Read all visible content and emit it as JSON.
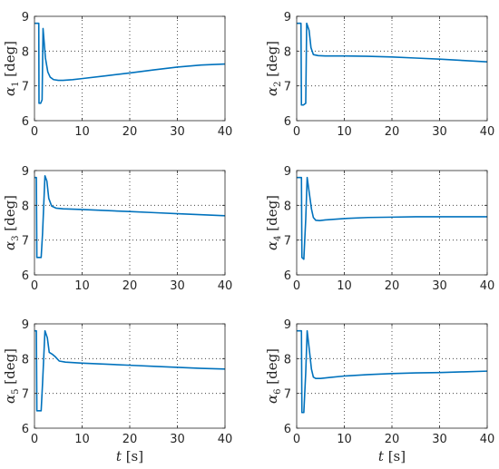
{
  "figure": {
    "xlabel": {
      "symbol": "t",
      "unit": "[s]"
    },
    "line_color": "#0072BD"
  },
  "chart_data": [
    {
      "type": "line",
      "ylabel": {
        "symbol": "α",
        "sub": "1",
        "unit": "[deg]"
      },
      "xlim": [
        0,
        40
      ],
      "ylim": [
        6,
        9
      ],
      "xticks": [
        0,
        10,
        20,
        30,
        40
      ],
      "yticks": [
        6,
        7,
        8,
        9
      ],
      "xticklabels": [
        "0",
        "10",
        "20",
        "30",
        "40"
      ],
      "yticklabels": [
        "6",
        "7",
        "8",
        "9"
      ],
      "grid": true,
      "x": [
        0,
        0.9,
        0.95,
        1.3,
        1.6,
        1.8,
        2.3,
        2.8,
        3.3,
        4,
        5,
        6,
        8,
        10,
        15,
        20,
        25,
        30,
        35,
        40
      ],
      "y": [
        8.8,
        8.8,
        6.5,
        6.5,
        6.6,
        8.65,
        7.8,
        7.4,
        7.25,
        7.18,
        7.16,
        7.16,
        7.18,
        7.21,
        7.29,
        7.37,
        7.46,
        7.54,
        7.6,
        7.63
      ]
    },
    {
      "type": "line",
      "ylabel": {
        "symbol": "α",
        "sub": "2",
        "unit": "[deg]"
      },
      "xlim": [
        0,
        40
      ],
      "ylim": [
        6,
        9
      ],
      "xticks": [
        0,
        10,
        20,
        30,
        40
      ],
      "yticks": [
        6,
        7,
        8,
        9
      ],
      "xticklabels": [
        "0",
        "10",
        "20",
        "30",
        "40"
      ],
      "yticklabels": [
        "6",
        "7",
        "8",
        "9"
      ],
      "grid": true,
      "x": [
        0,
        0.9,
        1.0,
        1.4,
        1.9,
        2.1,
        2.6,
        3.0,
        3.5,
        4.5,
        6,
        10,
        15,
        20,
        25,
        30,
        35,
        40
      ],
      "y": [
        8.8,
        8.8,
        6.45,
        6.45,
        6.5,
        8.8,
        8.6,
        8.1,
        7.9,
        7.87,
        7.86,
        7.86,
        7.85,
        7.83,
        7.8,
        7.77,
        7.73,
        7.69
      ]
    },
    {
      "type": "line",
      "ylabel": {
        "symbol": "α",
        "sub": "3",
        "unit": "[deg]"
      },
      "xlim": [
        0,
        40
      ],
      "ylim": [
        6,
        9
      ],
      "xticks": [
        0,
        10,
        20,
        30,
        40
      ],
      "yticks": [
        6,
        7,
        8,
        9
      ],
      "xticklabels": [
        "0",
        "10",
        "20",
        "30",
        "40"
      ],
      "yticklabels": [
        "6",
        "7",
        "8",
        "9"
      ],
      "grid": true,
      "x": [
        0,
        0.4,
        0.5,
        1.4,
        1.7,
        2.2,
        2.6,
        3.0,
        3.6,
        4.5,
        6,
        10,
        15,
        20,
        25,
        30,
        35,
        40
      ],
      "y": [
        8.8,
        8.8,
        6.5,
        6.5,
        7.2,
        8.85,
        8.7,
        8.2,
        7.98,
        7.92,
        7.9,
        7.88,
        7.85,
        7.82,
        7.79,
        7.76,
        7.73,
        7.7
      ]
    },
    {
      "type": "line",
      "ylabel": {
        "symbol": "α",
        "sub": "4",
        "unit": "[deg]"
      },
      "xlim": [
        0,
        40
      ],
      "ylim": [
        6,
        9
      ],
      "xticks": [
        0,
        10,
        20,
        30,
        40
      ],
      "yticks": [
        6,
        7,
        8,
        9
      ],
      "xticklabels": [
        "0",
        "10",
        "20",
        "30",
        "40"
      ],
      "yticklabels": [
        "6",
        "7",
        "8",
        "9"
      ],
      "grid": true,
      "x": [
        0,
        1.0,
        1.1,
        1.5,
        1.9,
        2.2,
        2.7,
        3.1,
        3.5,
        4.0,
        4.8,
        6,
        10,
        15,
        20,
        25,
        30,
        35,
        40
      ],
      "y": [
        8.8,
        8.8,
        6.5,
        6.45,
        7.6,
        8.8,
        8.3,
        7.9,
        7.65,
        7.57,
        7.56,
        7.58,
        7.62,
        7.65,
        7.66,
        7.67,
        7.67,
        7.67,
        7.67
      ]
    },
    {
      "type": "line",
      "ylabel": {
        "symbol": "α",
        "sub": "5",
        "unit": "[deg]"
      },
      "xlim": [
        0,
        40
      ],
      "ylim": [
        6,
        9
      ],
      "xticks": [
        0,
        10,
        20,
        30,
        40
      ],
      "yticks": [
        6,
        7,
        8,
        9
      ],
      "xticklabels": [
        "0",
        "10",
        "20",
        "30",
        "40"
      ],
      "yticklabels": [
        "6",
        "7",
        "8",
        "9"
      ],
      "grid": true,
      "x": [
        0,
        0.4,
        0.5,
        1.4,
        1.7,
        2.2,
        2.7,
        3.1,
        3.8,
        4.4,
        5.2,
        6.5,
        10,
        15,
        20,
        25,
        30,
        35,
        40
      ],
      "y": [
        8.8,
        8.8,
        6.5,
        6.5,
        7.3,
        8.8,
        8.6,
        8.18,
        8.12,
        8.05,
        7.93,
        7.9,
        7.87,
        7.84,
        7.81,
        7.78,
        7.75,
        7.72,
        7.7
      ]
    },
    {
      "type": "line",
      "ylabel": {
        "symbol": "α",
        "sub": "6",
        "unit": "[deg]"
      },
      "xlim": [
        0,
        40
      ],
      "ylim": [
        6,
        9
      ],
      "xticks": [
        0,
        10,
        20,
        30,
        40
      ],
      "yticks": [
        6,
        7,
        8,
        9
      ],
      "xticklabels": [
        "0",
        "10",
        "20",
        "30",
        "40"
      ],
      "yticklabels": [
        "6",
        "7",
        "8",
        "9"
      ],
      "grid": true,
      "x": [
        0,
        1.0,
        1.1,
        1.5,
        1.9,
        2.2,
        2.7,
        3.1,
        3.5,
        4.0,
        5,
        7,
        10,
        15,
        20,
        25,
        30,
        35,
        40
      ],
      "y": [
        8.8,
        8.8,
        6.45,
        6.45,
        7.6,
        8.8,
        8.2,
        7.7,
        7.47,
        7.43,
        7.43,
        7.46,
        7.5,
        7.54,
        7.57,
        7.59,
        7.6,
        7.62,
        7.64
      ]
    }
  ]
}
